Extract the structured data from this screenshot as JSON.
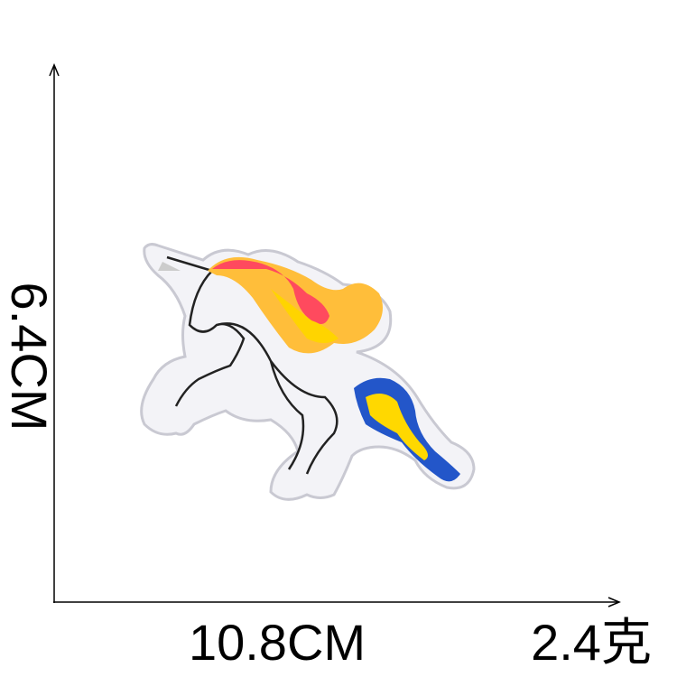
{
  "labels": {
    "height": "6.4CM",
    "width": "10.8CM",
    "weight": "2.4克"
  }
}
